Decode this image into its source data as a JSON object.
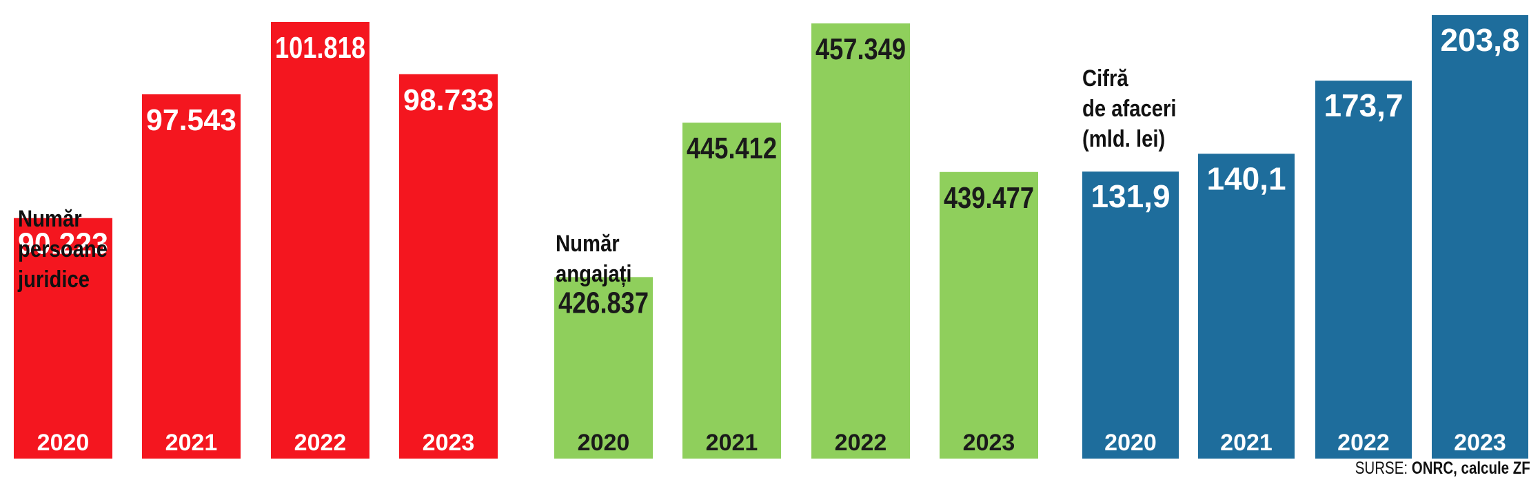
{
  "chart_data": [
    {
      "type": "bar",
      "title": "Număr\npersoane\njuridice",
      "categories": [
        "2020",
        "2021",
        "2022",
        "2023"
      ],
      "values": [
        90223,
        97543,
        101818,
        98733
      ],
      "value_labels": [
        "90.223",
        "97.543",
        "101.818",
        "98.733"
      ],
      "color": "#f4161f",
      "label_color": "#ffffff"
    },
    {
      "type": "bar",
      "title": "Număr\nangajați",
      "categories": [
        "2020",
        "2021",
        "2022",
        "2023"
      ],
      "values": [
        426837,
        445412,
        457349,
        439477
      ],
      "value_labels": [
        "426.837",
        "445.412",
        "457.349",
        "439.477"
      ],
      "color": "#8fcf5c",
      "label_color": "#1a1a1a"
    },
    {
      "type": "bar",
      "title": "Cifră\nde afaceri\n(mld. lei)",
      "categories": [
        "2020",
        "2021",
        "2022",
        "2023"
      ],
      "values": [
        131.9,
        140.1,
        173.7,
        203.8
      ],
      "value_labels": [
        "131,9",
        "140,1",
        "173,7",
        "203,8"
      ],
      "color": "#1e6d9c",
      "label_color": "#ffffff"
    }
  ],
  "source": {
    "prefix": "SURSE: ",
    "text": "ONRC, calcule ZF"
  }
}
